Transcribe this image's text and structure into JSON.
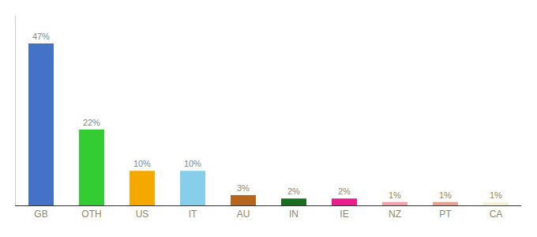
{
  "chart_data": {
    "type": "bar",
    "categories": [
      "GB",
      "OTH",
      "US",
      "IT",
      "AU",
      "IN",
      "IE",
      "NZ",
      "PT",
      "CA"
    ],
    "values": [
      47,
      22,
      10,
      10,
      3,
      2,
      2,
      1,
      1,
      1
    ],
    "value_labels": [
      "47%",
      "22%",
      "10%",
      "10%",
      "3%",
      "2%",
      "2%",
      "1%",
      "1%",
      "1%"
    ],
    "colors": [
      "#4472c4",
      "#33cc33",
      "#f5a800",
      "#87ceeb",
      "#b5651d",
      "#1a6e20",
      "#e91e8c",
      "#f4a0b0",
      "#e8a090",
      "#f5f0d8"
    ],
    "ylim": [
      0,
      55
    ],
    "data_labels": true,
    "tick_labels": "x",
    "grid": false
  }
}
